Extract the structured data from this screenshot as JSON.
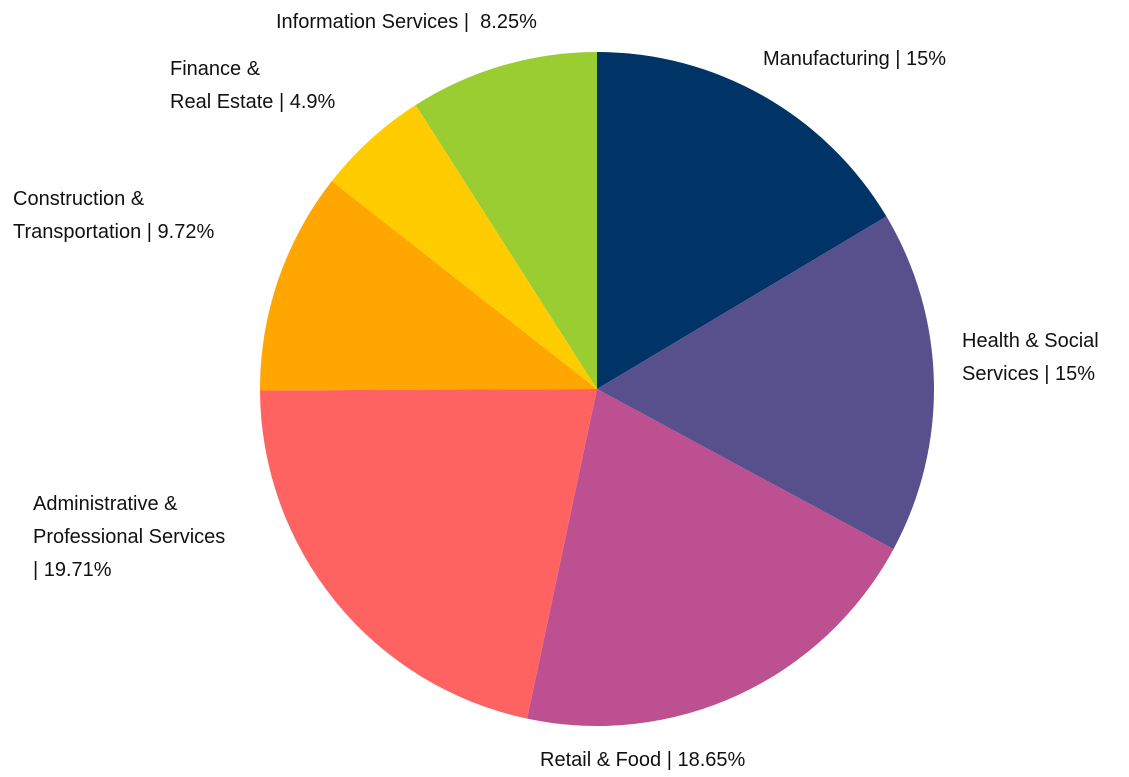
{
  "chart_data": {
    "type": "pie",
    "title": "",
    "start_angle_deg": 0,
    "direction": "clockwise",
    "slices": [
      {
        "name": "Manufacturing",
        "label": "Manufacturing | 15%",
        "value": 15,
        "color": "#003366"
      },
      {
        "name": "Health & Social Services",
        "label": "Health & Social\nServices | 15%",
        "value": 15,
        "color": "#58508d"
      },
      {
        "name": "Retail & Food",
        "label": "Retail & Food | 18.65%",
        "value": 18.65,
        "color": "#bc5090"
      },
      {
        "name": "Administrative & Professional Services",
        "label": "Administrative &\nProfessional Services\n| 19.71%",
        "value": 19.71,
        "color": "#ff6361"
      },
      {
        "name": "Construction & Transportation",
        "label": "Construction &\nTransportation | 9.72%",
        "value": 9.72,
        "color": "#ffa600"
      },
      {
        "name": "Finance & Real Estate",
        "label": "Finance &\nReal Estate | 4.9%",
        "value": 4.9,
        "color": "#ffcc00"
      },
      {
        "name": "Information Services",
        "label": "Information Services |  8.25%",
        "value": 8.25,
        "color": "#9acd32"
      }
    ]
  }
}
